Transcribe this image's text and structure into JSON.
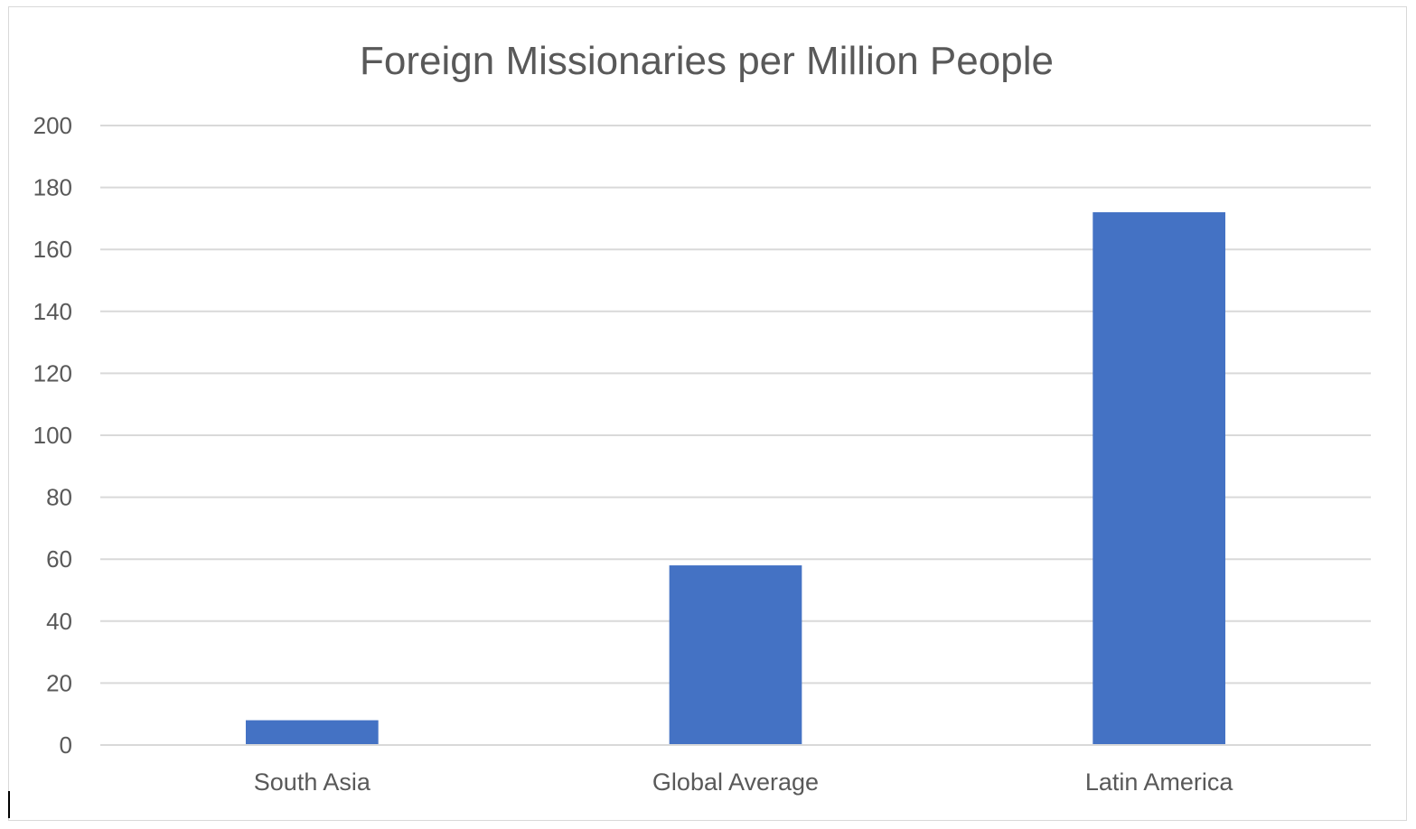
{
  "chart_data": {
    "type": "bar",
    "title": "Foreign Missionaries per Million People",
    "xlabel": "",
    "ylabel": "",
    "categories": [
      "South Asia",
      "Global Average",
      "Latin America"
    ],
    "values": [
      8,
      58,
      172
    ],
    "ylim": [
      0,
      200
    ],
    "yticks": [
      "0",
      "20",
      "40",
      "60",
      "80",
      "100",
      "120",
      "140",
      "160",
      "180",
      "200"
    ],
    "grid": true,
    "legend": "none",
    "colors": {
      "bar": "#4472c4",
      "grid": "#d9d9d9",
      "text": "#595959"
    }
  }
}
